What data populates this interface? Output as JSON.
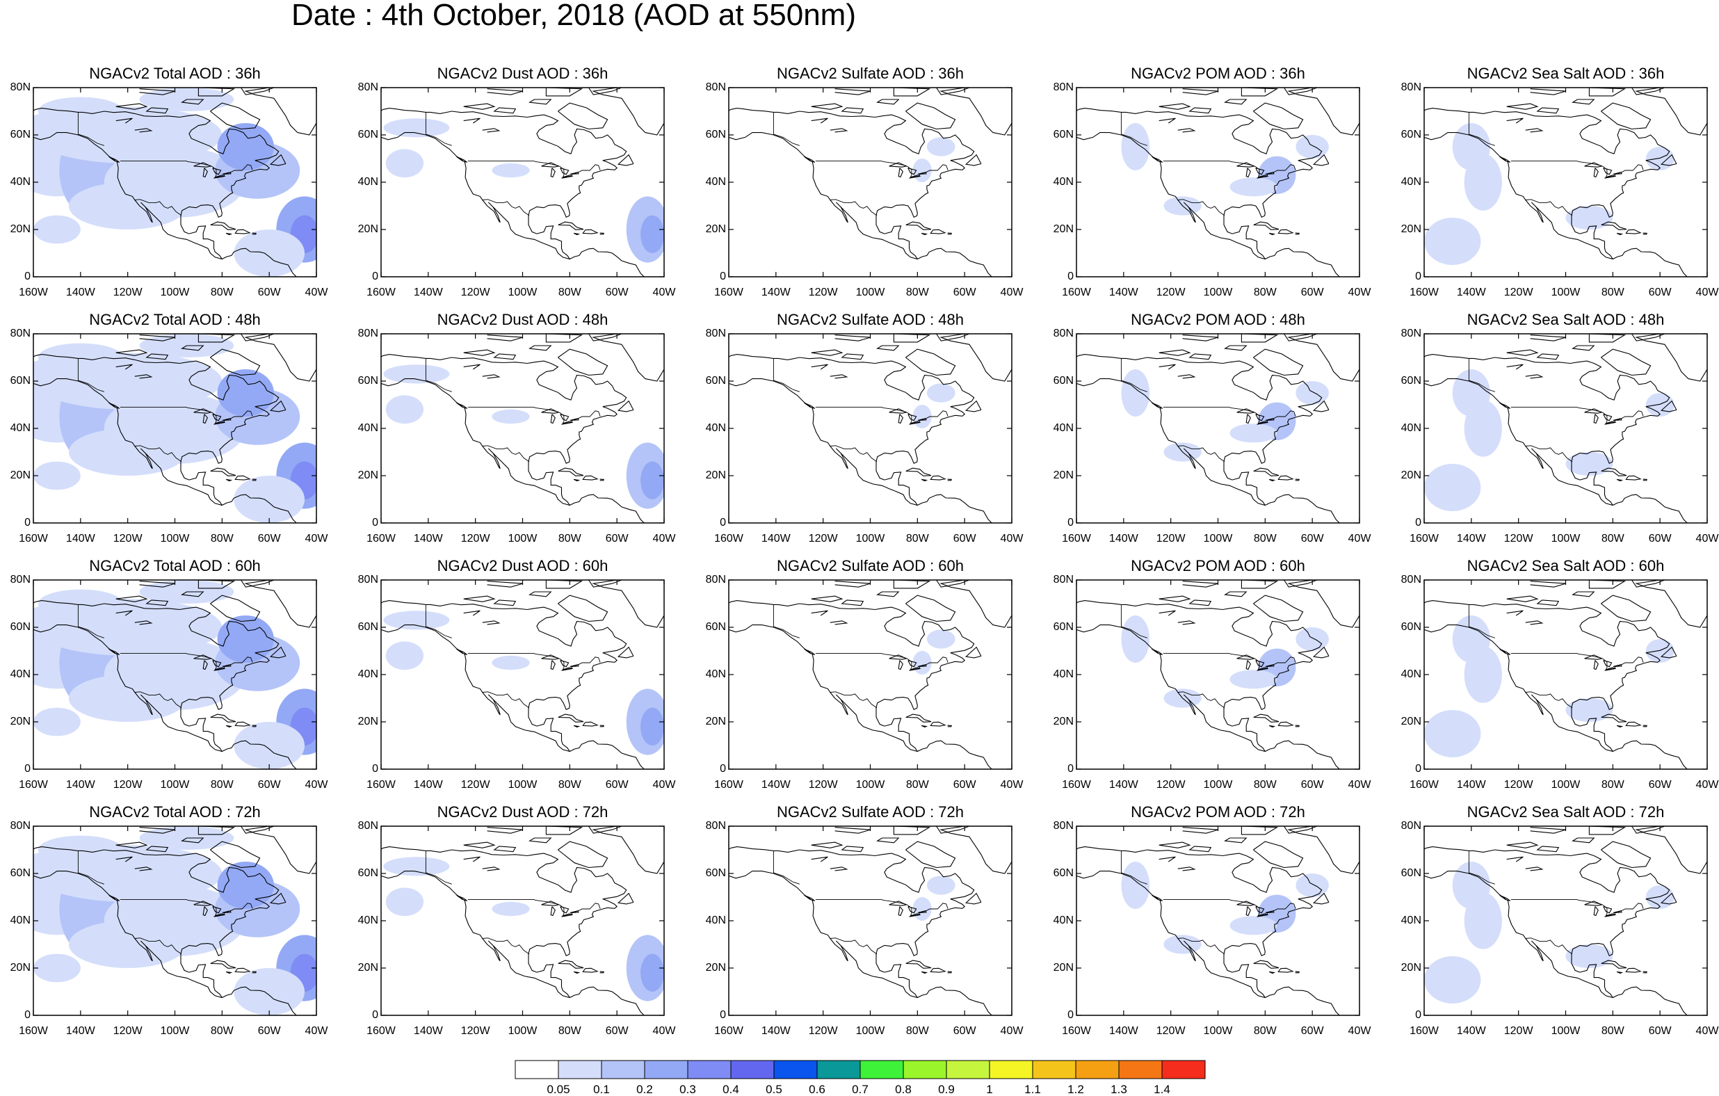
{
  "title": "Date : 4th October, 2018 (AOD at 550nm)",
  "rows": [
    {
      "panels": [
        {
          "title": "NGACv2 Total AOD : 36h",
          "species": "total"
        },
        {
          "title": "NGACv2 Dust AOD : 36h",
          "species": "dust"
        },
        {
          "title": "NGACv2 Sulfate AOD : 36h",
          "species": "sulfate"
        },
        {
          "title": "NGACv2 POM AOD : 36h",
          "species": "pom"
        },
        {
          "title": "NGACv2 Sea Salt AOD : 36h",
          "species": "seasalt"
        }
      ]
    },
    {
      "panels": [
        {
          "title": "NGACv2 Total AOD : 48h",
          "species": "total"
        },
        {
          "title": "NGACv2 Dust AOD : 48h",
          "species": "dust"
        },
        {
          "title": "NGACv2 Sulfate AOD : 48h",
          "species": "sulfate"
        },
        {
          "title": "NGACv2 POM AOD : 48h",
          "species": "pom"
        },
        {
          "title": "NGACv2 Sea Salt AOD : 48h",
          "species": "seasalt"
        }
      ]
    },
    {
      "panels": [
        {
          "title": "NGACv2 Total AOD : 60h",
          "species": "total"
        },
        {
          "title": "NGACv2 Dust AOD : 60h",
          "species": "dust"
        },
        {
          "title": "NGACv2 Sulfate AOD : 60h",
          "species": "sulfate"
        },
        {
          "title": "NGACv2 POM AOD : 60h",
          "species": "pom"
        },
        {
          "title": "NGACv2 Sea Salt AOD : 60h",
          "species": "seasalt"
        }
      ]
    },
    {
      "panels": [
        {
          "title": "NGACv2 Total AOD : 72h",
          "species": "total"
        },
        {
          "title": "NGACv2 Dust AOD : 72h",
          "species": "dust"
        },
        {
          "title": "NGACv2 Sulfate AOD : 72h",
          "species": "sulfate"
        },
        {
          "title": "NGACv2 POM AOD : 72h",
          "species": "pom"
        },
        {
          "title": "NGACv2 Sea Salt  AOD : 72h",
          "species": "seasalt"
        }
      ]
    }
  ],
  "lat_labels": [
    "80N",
    "60N",
    "40N",
    "20N",
    "0"
  ],
  "lon_labels": [
    "160W",
    "140W",
    "120W",
    "100W",
    "80W",
    "60W",
    "40W"
  ],
  "colorbar": {
    "colors": [
      "#ffffff",
      "#d4defb",
      "#b4c4f8",
      "#93a9f5",
      "#7f8cf5",
      "#6367f0",
      "#0a55ee",
      "#0a9898",
      "#3ef23a",
      "#9af52b",
      "#c6f53e",
      "#f5f526",
      "#f5c41b",
      "#f5a012",
      "#f57614",
      "#f52d1c"
    ],
    "labels": [
      "0.05",
      "0.1",
      "0.2",
      "0.3",
      "0.4",
      "0.5",
      "0.6",
      "0.7",
      "0.8",
      "0.9",
      "1",
      "1.1",
      "1.2",
      "1.3",
      "1.4"
    ]
  }
}
